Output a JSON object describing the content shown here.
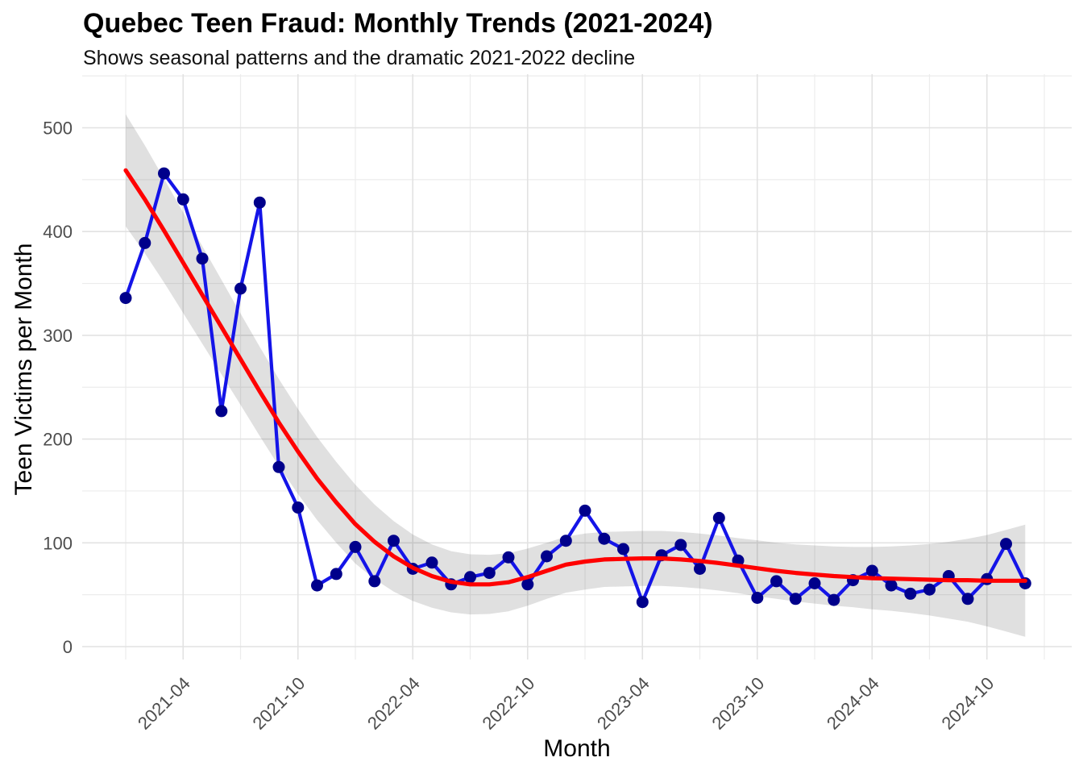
{
  "chart_data": {
    "type": "line",
    "title": "Quebec Teen Fraud: Monthly Trends (2021-2024)",
    "subtitle": "Shows seasonal patterns and the dramatic 2021-2022 decline",
    "xlabel": "Month",
    "ylabel": "Teen Victims per Month",
    "x": [
      "2021-01",
      "2021-02",
      "2021-03",
      "2021-04",
      "2021-05",
      "2021-06",
      "2021-07",
      "2021-08",
      "2021-09",
      "2021-10",
      "2021-11",
      "2021-12",
      "2022-01",
      "2022-02",
      "2022-03",
      "2022-04",
      "2022-05",
      "2022-06",
      "2022-07",
      "2022-08",
      "2022-09",
      "2022-10",
      "2022-11",
      "2022-12",
      "2023-01",
      "2023-02",
      "2023-03",
      "2023-04",
      "2023-05",
      "2023-06",
      "2023-07",
      "2023-08",
      "2023-09",
      "2023-10",
      "2023-11",
      "2023-12",
      "2024-01",
      "2024-02",
      "2024-03",
      "2024-04",
      "2024-05",
      "2024-06",
      "2024-07",
      "2024-08",
      "2024-09",
      "2024-10",
      "2024-11",
      "2024-12"
    ],
    "series": [
      {
        "name": "monthly-teen-victims",
        "type": "line-with-points",
        "line_color": "#1414E8",
        "point_color": "#00008B",
        "values": [
          336,
          389,
          456,
          431,
          374,
          227,
          345,
          428,
          173,
          134,
          59,
          70,
          96,
          63,
          102,
          75,
          81,
          60,
          67,
          71,
          86,
          60,
          87,
          102,
          131,
          104,
          94,
          43,
          88,
          98,
          75,
          124,
          83,
          47,
          63,
          46,
          61,
          45,
          64,
          73,
          59,
          51,
          55,
          68,
          46,
          65,
          99,
          61
        ]
      },
      {
        "name": "loess-trend",
        "type": "smooth-line-with-ci",
        "line_color": "#FF0000",
        "ci_color": "#3C3C3C",
        "ci_opacity": 0.16,
        "values": [
          459,
          431,
          401,
          370,
          339,
          308,
          277,
          246,
          216,
          188,
          162,
          139,
          118,
          101,
          87,
          76,
          68,
          62.5,
          60,
          60,
          62,
          67,
          73,
          79,
          82,
          84,
          84.5,
          85,
          85,
          84,
          82.5,
          80.5,
          78,
          75.5,
          73,
          71,
          69.5,
          68,
          67,
          66,
          65.5,
          65,
          64.5,
          64,
          64,
          63.5,
          63.5,
          63.5
        ],
        "ci_halfwidth": [
          54,
          52,
          50,
          48.5,
          47,
          45.5,
          44,
          43,
          42,
          41,
          40,
          39,
          38,
          36,
          34,
          32,
          30.5,
          29.5,
          29,
          28.5,
          28,
          27.5,
          27,
          27,
          27,
          26.5,
          26.5,
          26.5,
          26.5,
          26.5,
          26.5,
          26.5,
          26.5,
          27,
          27,
          27.5,
          28,
          28.5,
          29,
          30,
          31,
          32.5,
          34.5,
          37,
          40,
          44,
          49,
          54
        ]
      }
    ],
    "x_tick_labels": [
      "2021-04",
      "2021-10",
      "2022-04",
      "2022-10",
      "2023-04",
      "2023-10",
      "2024-04",
      "2024-10"
    ],
    "x_tick_indices": [
      3,
      9,
      15,
      21,
      27,
      33,
      39,
      45
    ],
    "y_ticks": [
      0,
      100,
      200,
      300,
      400,
      500
    ],
    "y_minor_ticks": [
      50,
      150,
      250,
      350,
      450,
      550
    ],
    "ylim": [
      -20,
      550
    ],
    "grid": {
      "major_color": "#E2E2E2",
      "minor_color": "#ECECEC",
      "background": "#FFFFFF"
    },
    "axis_text_color": "#4D4D4D",
    "legend_position": "none"
  }
}
